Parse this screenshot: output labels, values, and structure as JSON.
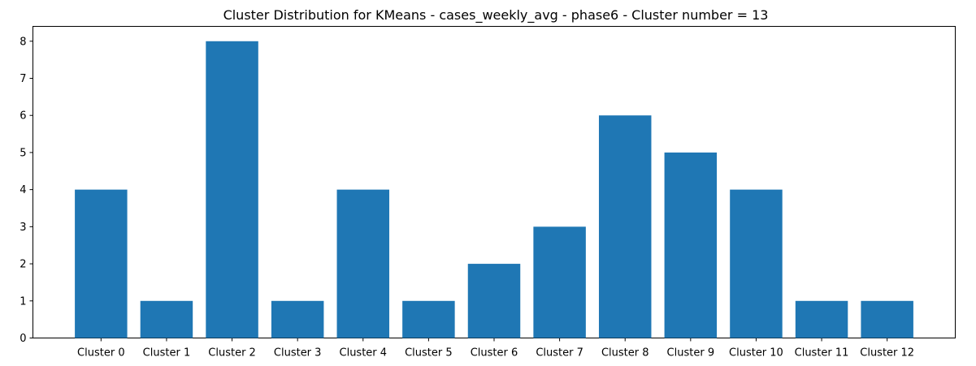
{
  "chart_data": {
    "type": "bar",
    "title": "Cluster Distribution for KMeans - cases_weekly_avg - phase6 - Cluster number = 13",
    "xlabel": "",
    "ylabel": "",
    "categories": [
      "Cluster 0",
      "Cluster 1",
      "Cluster 2",
      "Cluster 3",
      "Cluster 4",
      "Cluster 5",
      "Cluster 6",
      "Cluster 7",
      "Cluster 8",
      "Cluster 9",
      "Cluster 10",
      "Cluster 11",
      "Cluster 12"
    ],
    "values": [
      4,
      1,
      8,
      1,
      4,
      1,
      2,
      3,
      6,
      5,
      4,
      1,
      1
    ],
    "ylim": [
      0,
      8.4
    ],
    "yticks": [
      0,
      1,
      2,
      3,
      4,
      5,
      6,
      7,
      8
    ],
    "grid": false,
    "legend": "none",
    "bar_color": "#1f77b4"
  }
}
